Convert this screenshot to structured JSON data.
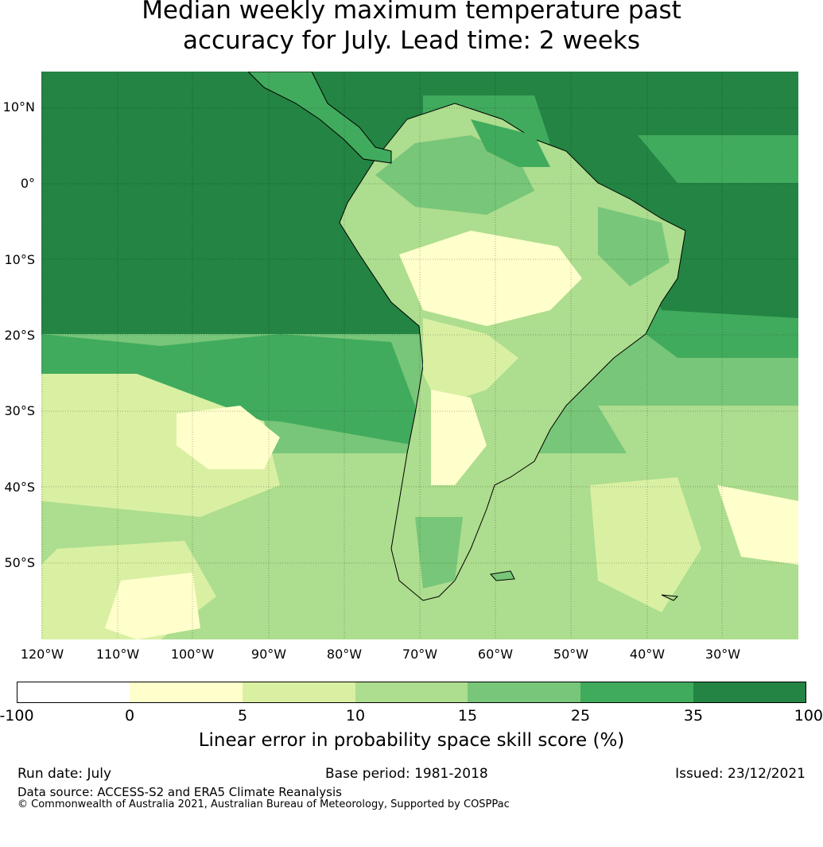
{
  "title": {
    "line1": "Median weekly maximum temperature past",
    "line2": "accuracy for July. Lead time: 2 weeks"
  },
  "map": {
    "lat_labels": [
      "10°N",
      "0°",
      "10°S",
      "20°S",
      "30°S",
      "40°S",
      "50°S"
    ],
    "lon_labels": [
      "120°W",
      "110°W",
      "100°W",
      "90°W",
      "80°W",
      "70°W",
      "60°W",
      "50°W",
      "40°W",
      "30°W"
    ],
    "colors": {
      "c_neg": "#ffffff",
      "c_0_5": "#ffffcc",
      "c_5_10": "#d9f0a3",
      "c_10_15": "#addd8e",
      "c_15_25": "#78c679",
      "c_25_35": "#41ab5d",
      "c_35_100": "#238443",
      "coastline": "#000000"
    }
  },
  "colorbar": {
    "ticks": [
      "-100",
      "0",
      "5",
      "10",
      "15",
      "25",
      "35",
      "100"
    ],
    "label": "Linear error in probability space skill score (%)"
  },
  "footer": {
    "run_date": "Run date: July",
    "base_period": "Base period: 1981-2018",
    "issued": "Issued: 23/12/2021",
    "data_source": "Data source: ACCESS-S2 and ERA5 Climate Reanalysis",
    "copyright": "© Commonwealth of Australia 2021, Australian Bureau of Meteorology, Supported by COSPPac"
  }
}
